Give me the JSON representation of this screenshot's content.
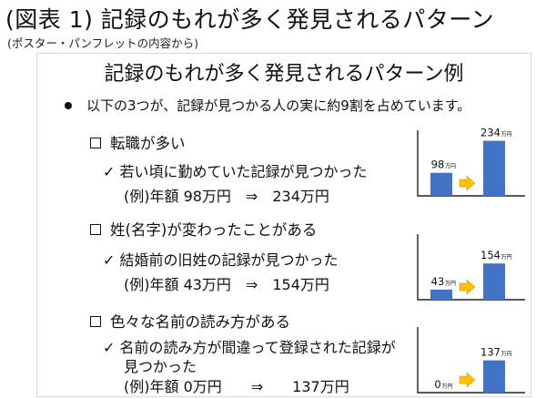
{
  "figure": {
    "title": "(図表 1) 記録のもれが多く発見されるパターン",
    "subtitle": "(ポスター・パンフレットの内容から)"
  },
  "slide": {
    "title": "記録のもれが多く発見されるパターン例",
    "intro": "以下の3つが、記録が見つかる人の実に約9割を占めています。"
  },
  "patterns": [
    {
      "title": "転職が多い",
      "desc_lines": [
        "✓ 若い頃に勤めていた記録が見つかった"
      ],
      "example": "(例)年額 98万円　⇒　234万円"
    },
    {
      "title": "姓(名字)が変わったことがある",
      "desc_lines": [
        "✓ 結婚前の旧姓の記録が見つかった"
      ],
      "example": "(例)年額 43万円　⇒　154万円"
    },
    {
      "title": "色々な名前の読み方がある",
      "desc_lines": [
        "✓ 名前の読み方が間違って登録された記録が",
        "見つかった"
      ],
      "example": "(例)年額 0万円　　⇒　　137万円"
    }
  ],
  "colors": {
    "bar": "#4472c4",
    "arrow": "#ffc000"
  },
  "chart_data": [
    {
      "type": "bar",
      "categories": [
        "",
        ""
      ],
      "values": [
        98,
        234
      ],
      "value_labels": [
        "98",
        "234"
      ],
      "unit": "万円",
      "ylim": [
        0,
        240
      ]
    },
    {
      "type": "bar",
      "categories": [
        "",
        ""
      ],
      "values": [
        43,
        154
      ],
      "value_labels": [
        "43",
        "154"
      ],
      "unit": "万円",
      "ylim": [
        0,
        240
      ]
    },
    {
      "type": "bar",
      "categories": [
        "",
        ""
      ],
      "values": [
        0,
        137
      ],
      "value_labels": [
        "0",
        "137"
      ],
      "unit": "万円",
      "ylim": [
        0,
        240
      ]
    }
  ]
}
